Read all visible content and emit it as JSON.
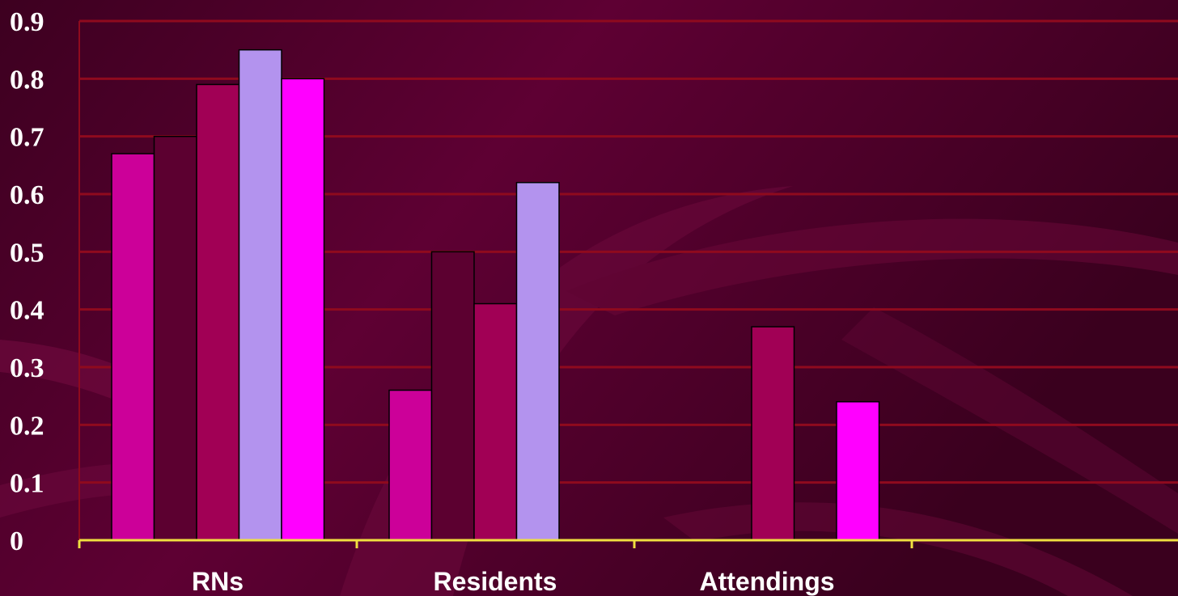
{
  "chart_data": {
    "type": "bar",
    "title": "",
    "xlabel": "",
    "ylabel": "",
    "ylim": [
      0,
      0.9
    ],
    "yticks": [
      "0",
      "0.1",
      "0.2",
      "0.3",
      "0.4",
      "0.5",
      "0.6",
      "0.7",
      "0.8",
      "0.9"
    ],
    "categories": [
      "RNs",
      "Residents",
      "Attendings",
      ""
    ],
    "grid": true,
    "legend": "none",
    "series": [
      {
        "color": "#cc0099",
        "values": [
          0.67,
          0.26,
          null,
          null
        ]
      },
      {
        "color": "#5c0030",
        "values": [
          0.7,
          0.5,
          null,
          null
        ]
      },
      {
        "color": "#a10055",
        "values": [
          0.79,
          0.41,
          0.37,
          null
        ]
      },
      {
        "color": "#b393ee",
        "values": [
          0.85,
          0.62,
          null,
          null
        ]
      },
      {
        "color": "#ff00ff",
        "values": [
          0.8,
          null,
          0.24,
          null
        ]
      }
    ],
    "colors": {
      "background": "#4a0026",
      "gridline": "#8f0a1e",
      "axis": "#f0e040",
      "text": "#ffffff"
    }
  }
}
